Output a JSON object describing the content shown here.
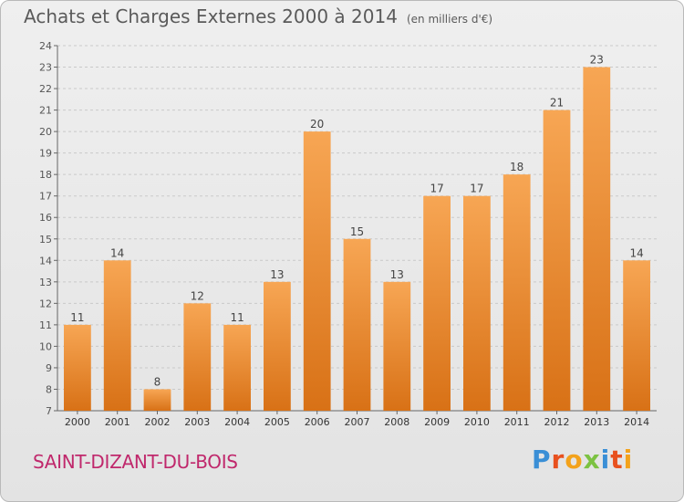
{
  "header": {
    "title": "Achats et Charges Externes 2000 à 2014",
    "subtitle": "(en milliers d'€)"
  },
  "footer": {
    "commune": "SAINT-DIZANT-DU-BOIS",
    "logo_letters": [
      "P",
      "r",
      "o",
      "x",
      "i",
      "t",
      "i"
    ],
    "logo_colors": [
      "#3a8fd6",
      "#e8501e",
      "#f3a21b",
      "#7cc242",
      "#3a8fd6",
      "#e8501e",
      "#f3a21b"
    ]
  },
  "chart_data": {
    "type": "bar",
    "title": "Achats et Charges Externes 2000 à 2014",
    "subtitle": "(en milliers d'€)",
    "categories": [
      "2000",
      "2001",
      "2002",
      "2003",
      "2004",
      "2005",
      "2006",
      "2007",
      "2008",
      "2009",
      "2010",
      "2011",
      "2012",
      "2013",
      "2014"
    ],
    "values": [
      11,
      14,
      8,
      12,
      11,
      13,
      20,
      15,
      13,
      17,
      17,
      18,
      21,
      23,
      14
    ],
    "ylim": [
      7,
      24
    ],
    "yticks": [
      7,
      8,
      9,
      10,
      11,
      12,
      13,
      14,
      15,
      16,
      17,
      18,
      19,
      20,
      21,
      22,
      23,
      24
    ],
    "xlabel": "",
    "ylabel": "",
    "grid": true,
    "bar_color_top": "#f7a654",
    "bar_color_bottom": "#d87116",
    "grid_color": "#c9c9c9"
  }
}
